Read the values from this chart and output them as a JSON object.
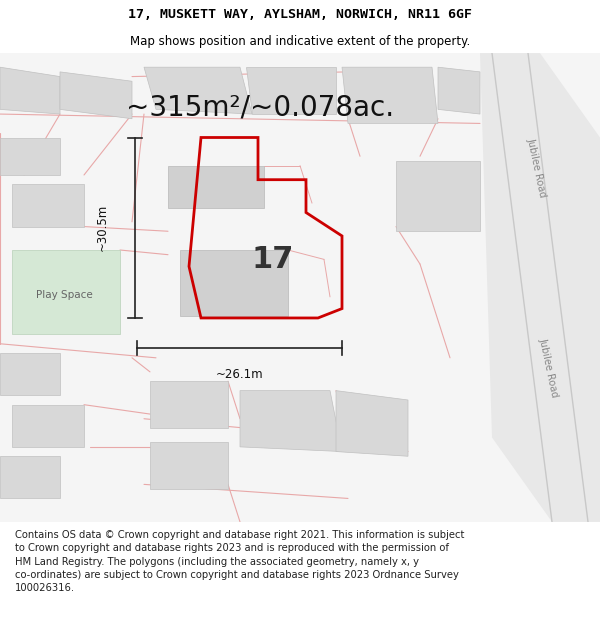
{
  "title": "17, MUSKETT WAY, AYLSHAM, NORWICH, NR11 6GF",
  "subtitle": "Map shows position and indicative extent of the property.",
  "area_text": "~315m²/~0.078ac.",
  "width_label": "~26.1m",
  "height_label": "~30.5m",
  "number_label": "17",
  "footer_text": "Contains OS data © Crown copyright and database right 2021. This information is subject to Crown copyright and database rights 2023 and is reproduced with the permission of HM Land Registry. The polygons (including the associated geometry, namely x, y co-ordinates) are subject to Crown copyright and database rights 2023 Ordnance Survey 100026316.",
  "title_fontsize": 9.5,
  "subtitle_fontsize": 8.5,
  "area_fontsize": 20,
  "footer_fontsize": 7.2,
  "number_fontsize": 22,
  "label_fontsize": 8.5
}
